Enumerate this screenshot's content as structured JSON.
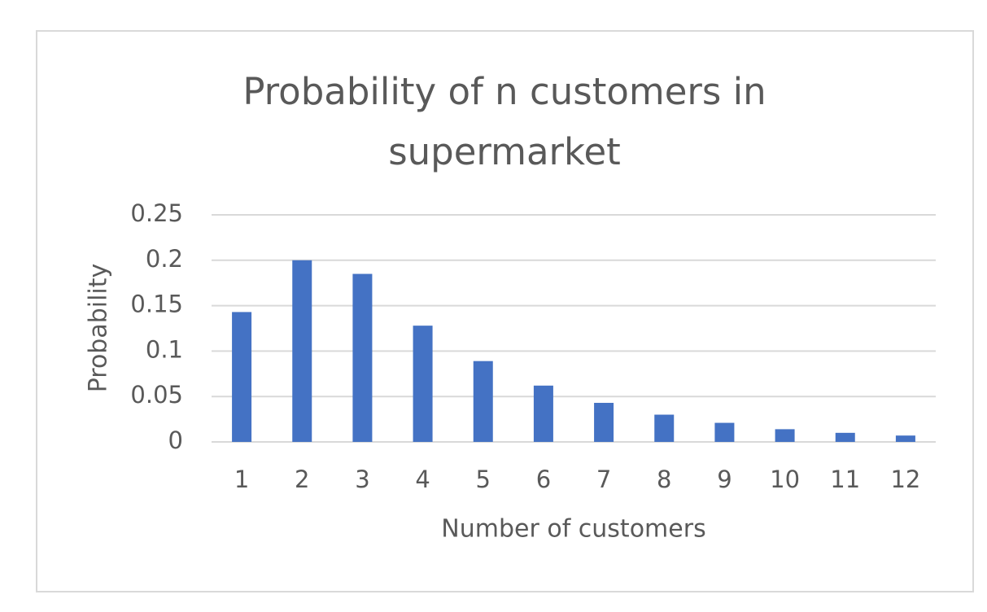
{
  "chart_data": {
    "type": "bar",
    "title": "Probability of n customers in supermarket",
    "x_label": "Number of customers",
    "y_label": "Probability",
    "categories": [
      "1",
      "2",
      "3",
      "4",
      "5",
      "6",
      "7",
      "8",
      "9",
      "10",
      "11",
      "12"
    ],
    "values": [
      0.143,
      0.2,
      0.185,
      0.128,
      0.089,
      0.062,
      0.043,
      0.03,
      0.021,
      0.014,
      0.01,
      0.007
    ],
    "color": "#4472c4",
    "ylim": [
      0,
      0.25
    ],
    "yticks": [
      0,
      0.05,
      0.1,
      0.15,
      0.2,
      0.25
    ],
    "grid": true
  }
}
